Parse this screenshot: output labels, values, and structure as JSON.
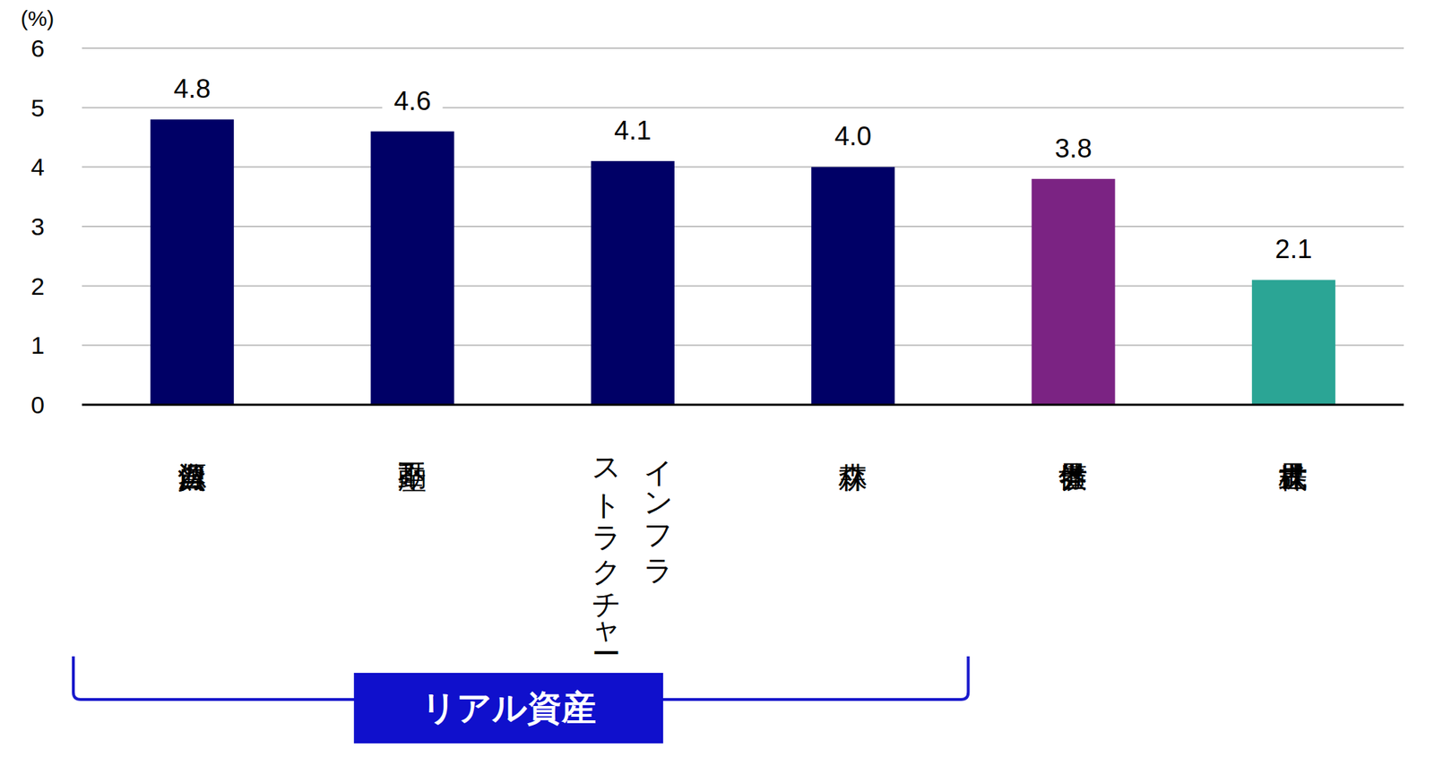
{
  "chart_data": {
    "type": "bar",
    "y_label": "(%)",
    "categories": [
      "自然資源",
      "不動産",
      "インフラ\nストラクチャー",
      "森林",
      "世界債券",
      "世界株式"
    ],
    "values": [
      4.8,
      4.6,
      4.1,
      4.0,
      3.8,
      2.1
    ],
    "value_labels": [
      "4.8",
      "4.6",
      "4.1",
      "4.0",
      "3.8",
      "2.1"
    ],
    "colors": [
      "#000066",
      "#000066",
      "#000066",
      "#000066",
      "#7b2383",
      "#2ba595"
    ],
    "ylim": [
      0,
      6
    ],
    "yticks": [
      0,
      1,
      2,
      3,
      4,
      5,
      6
    ],
    "grid": true,
    "data_labels": true,
    "annotations": [
      {
        "text": "リアル資産",
        "from": "自然資源",
        "to": "森林"
      }
    ]
  }
}
